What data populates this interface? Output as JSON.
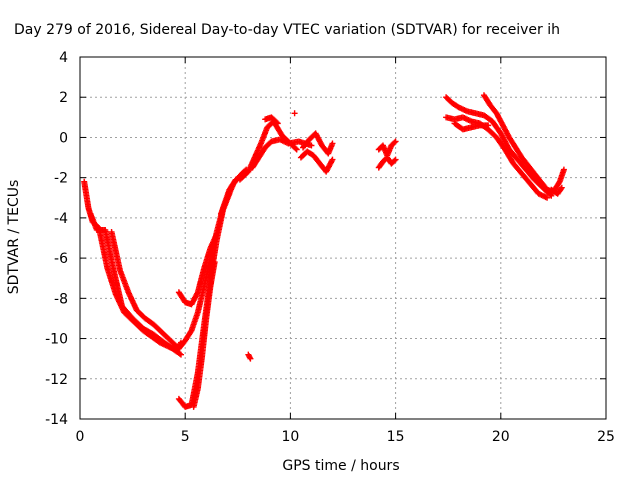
{
  "chart_data": {
    "type": "scatter",
    "title": "Day 279 of 2016, Sidereal Day-to-day VTEC variation (SDTVAR) for receiver ih",
    "xlabel": "GPS time / hours",
    "ylabel": "SDTVAR / TECUs",
    "xlim": [
      0,
      25
    ],
    "ylim": [
      -14,
      4
    ],
    "x_ticks": [
      0,
      5,
      10,
      15,
      20,
      25
    ],
    "y_ticks": [
      -14,
      -12,
      -10,
      -8,
      -6,
      -4,
      -2,
      0,
      2,
      4
    ],
    "x_tick_labels": [
      "0",
      "5",
      "10",
      "15",
      "20",
      "25"
    ],
    "y_tick_labels": [
      "-14",
      "-12",
      "-10",
      "-8",
      "-6",
      "-4",
      "-2",
      "0",
      "2",
      "4"
    ],
    "grid": true,
    "marker": "+",
    "series": [
      {
        "color": "#ff0000",
        "tracks": [
          {
            "x": [
              0.2,
              0.4,
              0.6,
              0.9,
              1.3,
              1.7,
              2.1,
              2.6,
              3.0,
              3.4,
              3.8,
              4.2,
              4.6,
              4.8
            ],
            "y": [
              -2.2,
              -3.5,
              -4.2,
              -4.5,
              -6.5,
              -7.8,
              -8.7,
              -9.2,
              -9.6,
              -9.9,
              -10.2,
              -10.4,
              -10.6,
              -10.2
            ]
          },
          {
            "x": [
              0.5,
              0.8,
              1.2,
              1.6,
              2.0,
              2.5,
              3.0,
              3.5,
              4.0,
              4.4,
              4.8
            ],
            "y": [
              -3.8,
              -4.6,
              -4.6,
              -6.6,
              -8.4,
              -9.0,
              -9.5,
              -9.8,
              -10.2,
              -10.5,
              -10.8
            ]
          },
          {
            "x": [
              1.5,
              1.9,
              2.3,
              2.7,
              3.1,
              3.5,
              3.9,
              4.3,
              4.6
            ],
            "y": [
              -4.7,
              -6.6,
              -7.7,
              -8.6,
              -9.0,
              -9.3,
              -9.7,
              -10.1,
              -10.4
            ]
          },
          {
            "x": [
              4.7,
              5.0,
              5.3,
              5.6,
              5.9,
              6.2,
              6.5
            ],
            "y": [
              -7.7,
              -8.2,
              -8.3,
              -7.7,
              -6.5,
              -5.5,
              -4.8
            ]
          },
          {
            "x": [
              4.7,
              5.0,
              5.3,
              5.6,
              5.9,
              6.2,
              6.5,
              6.8,
              7.1,
              7.4
            ],
            "y": [
              -10.5,
              -10.1,
              -9.6,
              -8.7,
              -7.4,
              -6.0,
              -4.7,
              -3.5,
              -2.6,
              -2.1
            ]
          },
          {
            "x": [
              4.7,
              5.0,
              5.3,
              5.6,
              5.9,
              6.2,
              6.5,
              6.8,
              7.1
            ],
            "y": [
              -13.0,
              -13.4,
              -13.3,
              -11.7,
              -9.3,
              -7.0,
              -5.1,
              -3.6,
              -2.8
            ]
          },
          {
            "x": [
              5.4,
              5.6,
              5.8,
              6.0,
              6.2,
              6.4
            ],
            "y": [
              -13.4,
              -12.5,
              -10.9,
              -9.0,
              -7.4,
              -6.2
            ]
          },
          {
            "x": [
              6.7,
              7.0,
              7.3,
              7.6,
              7.9
            ],
            "y": [
              -3.8,
              -3.0,
              -2.3,
              -1.9,
              -1.6
            ]
          },
          {
            "x": [
              7.6,
              8.0,
              8.3,
              8.6,
              8.9,
              9.2,
              9.6,
              10.0,
              10.3
            ],
            "y": [
              -2.1,
              -1.7,
              -1.0,
              -0.3,
              0.5,
              0.8,
              0.1,
              -0.3,
              -0.6
            ]
          },
          {
            "x": [
              8.2,
              8.5,
              8.8,
              9.1,
              9.5,
              9.9,
              10.4,
              11.0
            ],
            "y": [
              -1.5,
              -1.0,
              -0.5,
              -0.2,
              -0.1,
              -0.3,
              -0.2,
              -0.4
            ]
          },
          {
            "x": [
              8.8,
              9.1,
              9.4
            ],
            "y": [
              0.9,
              1.0,
              0.7
            ]
          },
          {
            "x": [
              8.0,
              8.1
            ],
            "y": [
              -10.8,
              -11.0
            ]
          },
          {
            "x": [
              10.2
            ],
            "y": [
              1.2
            ]
          },
          {
            "x": [
              10.6,
              10.9,
              11.2,
              11.5,
              11.8,
              12.0
            ],
            "y": [
              -0.5,
              -0.1,
              0.2,
              -0.4,
              -0.8,
              -0.3
            ]
          },
          {
            "x": [
              10.5,
              10.8,
              11.1,
              11.4,
              11.7,
              12.0
            ],
            "y": [
              -1.0,
              -0.7,
              -0.9,
              -1.3,
              -1.7,
              -1.1
            ]
          },
          {
            "x": [
              14.2,
              14.4,
              14.6,
              14.8,
              15.0
            ],
            "y": [
              -0.6,
              -0.4,
              -0.9,
              -0.4,
              -0.2
            ]
          },
          {
            "x": [
              14.2,
              14.4,
              14.6,
              14.8,
              15.0
            ],
            "y": [
              -1.5,
              -1.2,
              -1.0,
              -1.3,
              -1.1
            ]
          },
          {
            "x": [
              17.4,
              17.7,
              18.0,
              18.4,
              18.8,
              19.2,
              19.6,
              20.0,
              20.4,
              20.8,
              21.2,
              21.6,
              22.0,
              22.4
            ],
            "y": [
              2.0,
              1.7,
              1.5,
              1.3,
              1.2,
              1.1,
              0.8,
              0.2,
              -0.6,
              -1.1,
              -1.6,
              -2.1,
              -2.5,
              -2.9
            ]
          },
          {
            "x": [
              17.4,
              17.8,
              18.2,
              18.6,
              19.0,
              19.4,
              19.8,
              20.2,
              20.6,
              21.0,
              21.4,
              21.8,
              22.2
            ],
            "y": [
              1.0,
              0.9,
              1.0,
              0.8,
              0.7,
              0.4,
              0.0,
              -0.6,
              -1.3,
              -1.8,
              -2.3,
              -2.8,
              -3.0
            ]
          },
          {
            "x": [
              17.8,
              18.2,
              18.6,
              19.0,
              19.4
            ],
            "y": [
              0.7,
              0.4,
              0.5,
              0.6,
              0.6
            ]
          },
          {
            "x": [
              19.2,
              19.5,
              19.8,
              20.1,
              20.4,
              20.7,
              21.0,
              21.3,
              21.6,
              21.9,
              22.2,
              22.5,
              22.8,
              23.0
            ],
            "y": [
              2.1,
              1.6,
              1.2,
              0.6,
              0.0,
              -0.5,
              -1.0,
              -1.4,
              -1.8,
              -2.2,
              -2.6,
              -2.7,
              -2.2,
              -1.6
            ]
          },
          {
            "x": [
              22.4,
              22.7,
              22.9
            ],
            "y": [
              -2.6,
              -2.8,
              -2.5
            ]
          }
        ]
      }
    ]
  }
}
